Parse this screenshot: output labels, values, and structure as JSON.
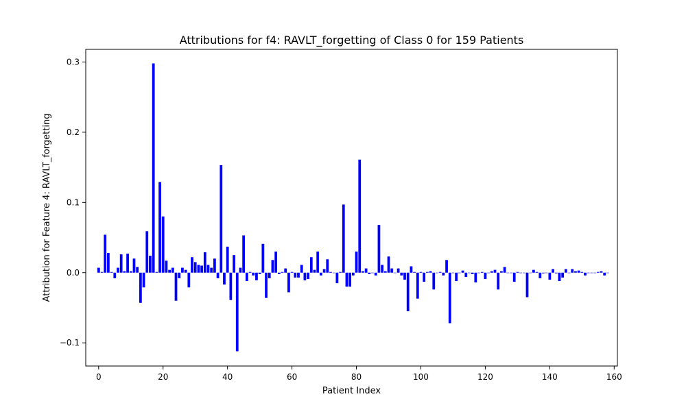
{
  "chart_data": {
    "type": "bar",
    "title": "Attributions for f4: RAVLT_forgetting of Class 0 for 159 Patients",
    "xlabel": "Patient Index",
    "ylabel": "Attribution for Feature 4: RAVLT_forgetting",
    "xlim": [
      -4,
      161
    ],
    "ylim": [
      -0.133,
      0.318
    ],
    "x_ticks": [
      0,
      20,
      40,
      60,
      80,
      100,
      120,
      140,
      160
    ],
    "x_tick_labels": [
      "0",
      "20",
      "40",
      "60",
      "80",
      "100",
      "120",
      "140",
      "160"
    ],
    "y_ticks": [
      -0.1,
      0.0,
      0.1,
      0.2,
      0.3
    ],
    "y_tick_labels": [
      "−0.1",
      "0.0",
      "0.1",
      "0.2",
      "0.3"
    ],
    "bar_color": "#0000ff",
    "grid": false,
    "x": [
      0,
      1,
      2,
      3,
      4,
      5,
      6,
      7,
      8,
      9,
      10,
      11,
      12,
      13,
      14,
      15,
      16,
      17,
      18,
      19,
      20,
      21,
      22,
      23,
      24,
      25,
      26,
      27,
      28,
      29,
      30,
      31,
      32,
      33,
      34,
      35,
      36,
      37,
      38,
      39,
      40,
      41,
      42,
      43,
      44,
      45,
      46,
      47,
      48,
      49,
      50,
      51,
      52,
      53,
      54,
      55,
      56,
      57,
      58,
      59,
      60,
      61,
      62,
      63,
      64,
      65,
      66,
      67,
      68,
      69,
      70,
      71,
      72,
      73,
      74,
      75,
      76,
      77,
      78,
      79,
      80,
      81,
      82,
      83,
      84,
      85,
      86,
      87,
      88,
      89,
      90,
      91,
      92,
      93,
      94,
      95,
      96,
      97,
      98,
      99,
      100,
      101,
      102,
      103,
      104,
      105,
      106,
      107,
      108,
      109,
      110,
      111,
      112,
      113,
      114,
      115,
      116,
      117,
      118,
      119,
      120,
      121,
      122,
      123,
      124,
      125,
      126,
      127,
      128,
      129,
      130,
      131,
      132,
      133,
      134,
      135,
      136,
      137,
      138,
      139,
      140,
      141,
      142,
      143,
      144,
      145,
      146,
      147,
      148,
      149,
      150,
      151,
      152,
      153,
      154,
      155,
      156,
      157,
      158
    ],
    "values": [
      0.007,
      0.001,
      0.054,
      0.028,
      0.001,
      -0.008,
      0.007,
      0.026,
      0.002,
      0.027,
      0.002,
      0.02,
      0.008,
      -0.043,
      -0.021,
      0.059,
      0.024,
      0.298,
      0.001,
      0.129,
      0.08,
      0.017,
      0.004,
      0.007,
      -0.04,
      -0.008,
      0.007,
      0.004,
      -0.021,
      0.022,
      0.015,
      0.011,
      0.01,
      0.029,
      0.011,
      0.007,
      0.02,
      -0.008,
      0.153,
      -0.017,
      0.037,
      -0.039,
      0.025,
      -0.112,
      0.007,
      0.053,
      -0.012,
      0.001,
      -0.004,
      -0.011,
      -0.002,
      0.041,
      -0.036,
      -0.008,
      0.018,
      0.03,
      -0.002,
      0.001,
      0.006,
      -0.028,
      0.001,
      -0.007,
      -0.007,
      0.011,
      -0.011,
      -0.009,
      0.022,
      0.004,
      0.03,
      -0.004,
      0.005,
      0.019,
      0.001,
      0.0,
      -0.015,
      0.001,
      0.097,
      -0.02,
      -0.02,
      -0.004,
      0.03,
      0.161,
      0.002,
      0.006,
      -0.002,
      0.0,
      -0.004,
      0.068,
      0.011,
      0.002,
      0.023,
      0.006,
      0.0,
      0.006,
      -0.004,
      -0.01,
      -0.055,
      0.009,
      0.001,
      -0.037,
      0.001,
      -0.013,
      0.001,
      0.002,
      -0.024,
      0.0,
      0.001,
      -0.004,
      0.018,
      -0.072,
      0.0,
      -0.012,
      0.0,
      0.003,
      -0.006,
      0.0,
      -0.002,
      -0.014,
      0.0,
      0.001,
      -0.009,
      0.0,
      0.002,
      0.004,
      -0.024,
      0.002,
      0.008,
      0.0,
      0.0,
      -0.013,
      0.001,
      0.0,
      0.0,
      -0.035,
      0.0,
      0.004,
      0.001,
      -0.008,
      -0.001,
      0.0,
      -0.01,
      0.005,
      -0.001,
      -0.012,
      -0.007,
      0.005,
      0.0,
      0.005,
      0.002,
      0.003,
      0.001,
      -0.004,
      0.0,
      0.0,
      0.0,
      0.001,
      0.002,
      -0.004,
      0.0
    ]
  }
}
